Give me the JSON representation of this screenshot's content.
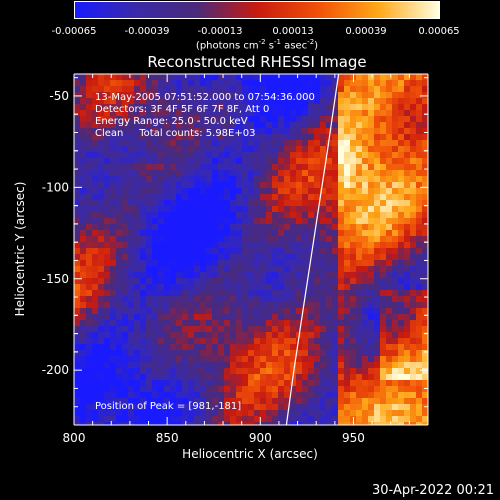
{
  "colorbar": {
    "tick_labels": [
      "-0.00065",
      "-0.00039",
      "-0.00013",
      "0.00013",
      "0.00039",
      "0.00065"
    ],
    "range": [
      -0.00065,
      0.00065
    ],
    "units_prefix": "(photons cm",
    "units_exp1": "-2",
    "units_mid": " s",
    "units_exp2": "-1",
    "units_mid2": " asec",
    "units_exp3": "-2",
    "units_suffix": ")",
    "colors": [
      "#1a1aff",
      "#3a2aaa",
      "#4a2a7a",
      "#c81a10",
      "#f05008",
      "#ffa818",
      "#ffffe0"
    ]
  },
  "title": "Reconstructed RHESSI Image",
  "annotations": [
    "13-May-2005 07:51:52.000 to 07:54:36.000",
    "Detectors: 3F 4F 5F 6F 7F 8F, Att 0",
    "Energy Range: 25.0 - 50.0 keV",
    "Clean     Total counts: 5.98E+03"
  ],
  "peak_text": "Position of Peak = [981,-181]",
  "footer": "30-Apr-2022 00:21",
  "chart_data": {
    "type": "heatmap",
    "title": "Reconstructed RHESSI Image",
    "xlabel": "Heliocentric X (arcsec)",
    "ylabel": "Heliocentric Y (arcsec)",
    "xlim": [
      800,
      990
    ],
    "ylim": [
      -230,
      -38
    ],
    "x_ticks": [
      800,
      850,
      900,
      950
    ],
    "y_ticks": [
      -50,
      -100,
      -150,
      -200
    ],
    "x_tick_labels": [
      "800",
      "850",
      "900",
      "950"
    ],
    "y_tick_labels": [
      "-50",
      "-100",
      "-150",
      "-200"
    ],
    "peak": [
      981,
      -181
    ],
    "limb_curve": [
      [
        942,
        -38
      ],
      [
        936,
        -80
      ],
      [
        930,
        -120
      ],
      [
        924,
        -160
      ],
      [
        918,
        -200
      ],
      [
        914,
        -230
      ]
    ]
  }
}
